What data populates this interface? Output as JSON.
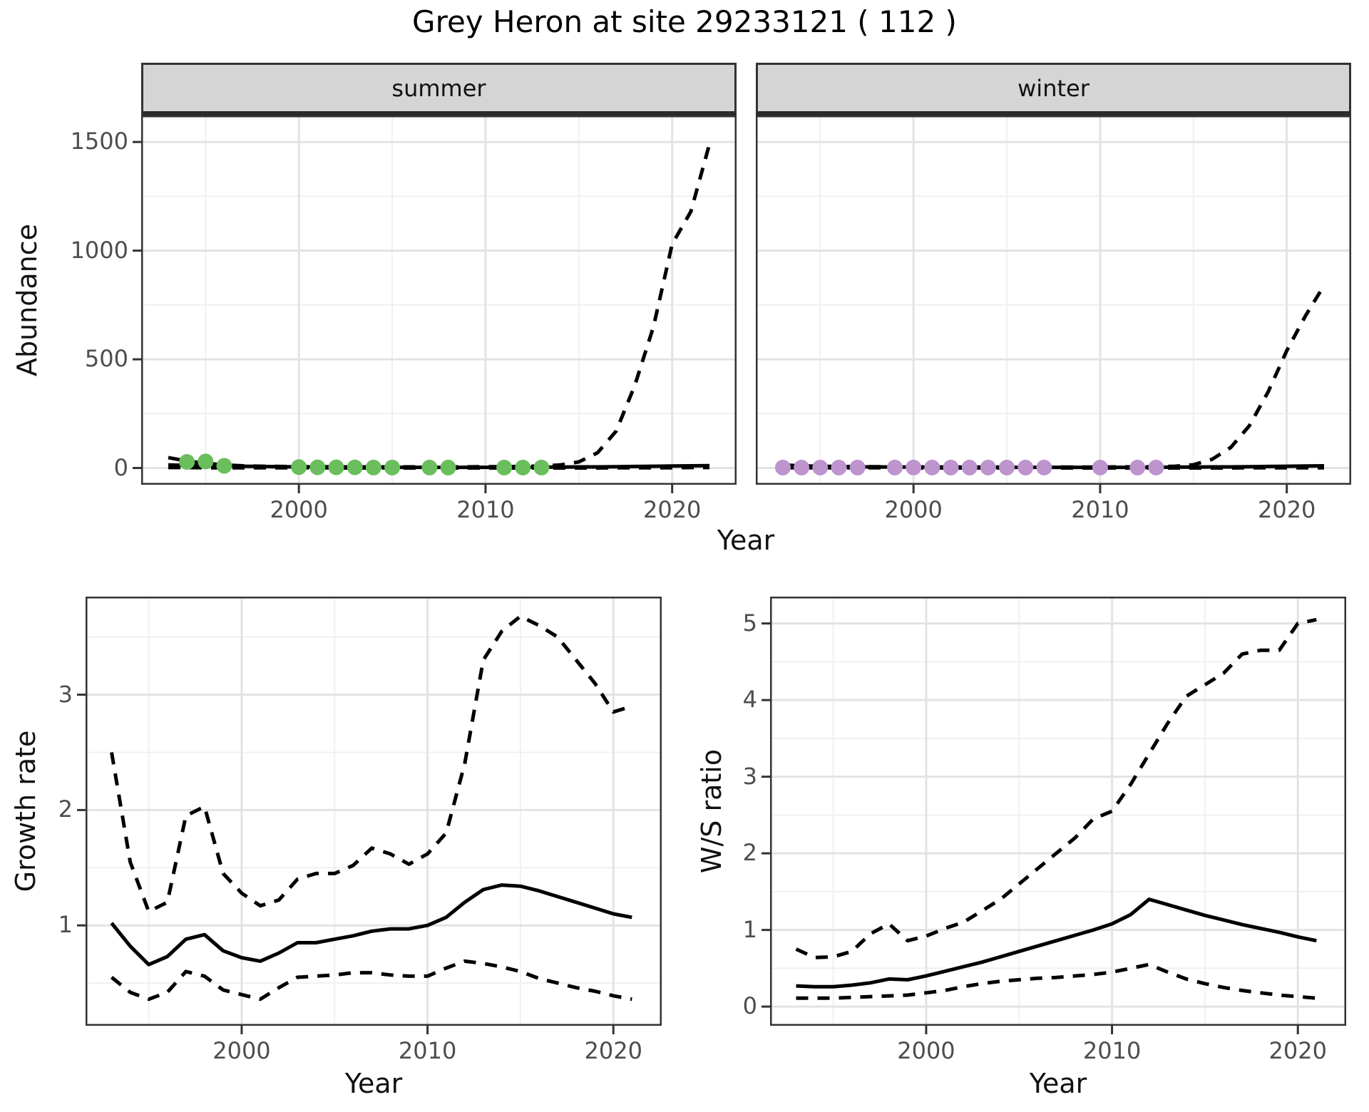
{
  "title": "Grey Heron at site 29233121 ( 112 )",
  "facets": {
    "summer": "summer",
    "winter": "winter"
  },
  "axes": {
    "abundance_label": "Abundance",
    "year_label_top": "Year",
    "growth_label": "Growth rate",
    "ws_label": "W/S ratio",
    "year_label_growth": "Year",
    "year_label_ws": "Year"
  },
  "colors": {
    "summer_point": "#6abe5c",
    "winter_point": "#bd94ce",
    "line": "#000000",
    "grid_major": "#e3e3e3",
    "grid_minor": "#f0f0f0",
    "panel_border": "#333333",
    "strip_bg": "#d5d5d5",
    "tick_text": "#4d4d4d"
  },
  "chart_data": [
    {
      "panel": "summer",
      "type": "line",
      "title": "summer abundance with 95% CI and observed counts",
      "xlabel": "Year",
      "ylabel": "Abundance",
      "xlim": [
        1991.55,
        2023.45
      ],
      "ylim": [
        -77,
        1622
      ],
      "x_ticks": [
        2000,
        2010,
        2020
      ],
      "x_tick_labels": [
        "2000",
        "2010",
        "2020"
      ],
      "x_minor": [
        1995,
        2005,
        2015
      ],
      "y_ticks": [
        0,
        500,
        1000,
        1500
      ],
      "y_tick_labels": [
        "0",
        "500",
        "1000",
        "1500"
      ],
      "y_minor": [
        250,
        750,
        1250
      ],
      "show_y_labels": true,
      "x": [
        1993,
        1994,
        1995,
        1996,
        1997,
        1998,
        1999,
        2000,
        2001,
        2002,
        2003,
        2004,
        2005,
        2006,
        2007,
        2008,
        2009,
        2010,
        2011,
        2012,
        2013,
        2014,
        2015,
        2016,
        2017,
        2018,
        2019,
        2020,
        2021,
        2022
      ],
      "series": [
        {
          "name": "upper_ci",
          "dash": true,
          "values": [
            48,
            32,
            22,
            14,
            10,
            8,
            7,
            6,
            6,
            5,
            5,
            5,
            5,
            5,
            5,
            5,
            5,
            6,
            6,
            7,
            9,
            14,
            28,
            70,
            170,
            380,
            650,
            1030,
            1180,
            1490
          ]
        },
        {
          "name": "lower_ci",
          "dash": true,
          "values": [
            2,
            2,
            1,
            1,
            1,
            1,
            1,
            1,
            1,
            0,
            0,
            0,
            0,
            0,
            0,
            0,
            0,
            0,
            0,
            0,
            0,
            0,
            0,
            0,
            1,
            1,
            1,
            1,
            2,
            2
          ]
        },
        {
          "name": "fit",
          "dash": false,
          "values": [
            14,
            12,
            10,
            9,
            8,
            7,
            6,
            5,
            5,
            4,
            4,
            4,
            3,
            3,
            3,
            3,
            3,
            3,
            3,
            3,
            4,
            4,
            5,
            5,
            6,
            7,
            8,
            9,
            10,
            11
          ]
        }
      ],
      "points": {
        "name": "observed_summer",
        "color": "#6abe5c",
        "x": [
          1994,
          1995,
          1996,
          2000,
          2001,
          2002,
          2003,
          2004,
          2005,
          2007,
          2008,
          2011,
          2012,
          2013
        ],
        "y": [
          28,
          30,
          10,
          4,
          3,
          3,
          3,
          2,
          2,
          2,
          2,
          2,
          2,
          2
        ]
      }
    },
    {
      "panel": "winter",
      "type": "line",
      "title": "winter abundance with 95% CI and observed counts",
      "xlabel": "Year",
      "ylabel": "Abundance",
      "xlim": [
        1991.55,
        2023.45
      ],
      "ylim": [
        -77,
        1622
      ],
      "x_ticks": [
        2000,
        2010,
        2020
      ],
      "x_tick_labels": [
        "2000",
        "2010",
        "2020"
      ],
      "x_minor": [
        1995,
        2005,
        2015
      ],
      "y_ticks": [
        0,
        500,
        1000,
        1500
      ],
      "y_tick_labels": [
        "0",
        "500",
        "1000",
        "1500"
      ],
      "y_minor": [
        250,
        750,
        1250
      ],
      "show_y_labels": false,
      "x": [
        1993,
        1994,
        1995,
        1996,
        1997,
        1998,
        1999,
        2000,
        2001,
        2002,
        2003,
        2004,
        2005,
        2006,
        2007,
        2008,
        2009,
        2010,
        2011,
        2012,
        2013,
        2014,
        2015,
        2016,
        2017,
        2018,
        2019,
        2020,
        2021,
        2022
      ],
      "series": [
        {
          "name": "upper_ci",
          "dash": true,
          "values": [
            14,
            10,
            8,
            7,
            6,
            6,
            5,
            5,
            5,
            4,
            4,
            4,
            4,
            4,
            4,
            4,
            4,
            4,
            5,
            5,
            6,
            8,
            15,
            40,
            95,
            195,
            350,
            540,
            700,
            840
          ]
        },
        {
          "name": "lower_ci",
          "dash": true,
          "values": [
            1,
            1,
            1,
            1,
            1,
            1,
            0,
            0,
            0,
            0,
            0,
            0,
            0,
            0,
            0,
            0,
            0,
            0,
            0,
            0,
            0,
            0,
            0,
            0,
            0,
            1,
            1,
            1,
            1,
            1
          ]
        },
        {
          "name": "fit",
          "dash": false,
          "values": [
            8,
            7,
            6,
            6,
            5,
            5,
            4,
            4,
            4,
            3,
            3,
            3,
            3,
            3,
            3,
            3,
            3,
            3,
            3,
            3,
            3,
            4,
            4,
            5,
            5,
            6,
            7,
            8,
            9,
            10
          ]
        }
      ],
      "points": {
        "name": "observed_winter",
        "color": "#bd94ce",
        "x": [
          1993,
          1994,
          1995,
          1996,
          1997,
          1999,
          2000,
          2001,
          2002,
          2003,
          2004,
          2005,
          2006,
          2007,
          2010,
          2012,
          2013
        ],
        "y": [
          2,
          2,
          2,
          2,
          2,
          2,
          2,
          2,
          2,
          2,
          2,
          2,
          2,
          2,
          2,
          2,
          2
        ]
      }
    },
    {
      "panel": "growth",
      "type": "line",
      "title": "Growth rate with 95% CI",
      "xlabel": "Year",
      "ylabel": "Growth rate",
      "xlim": [
        1991.6,
        2022.6
      ],
      "ylim": [
        0.13,
        3.85
      ],
      "x_ticks": [
        2000,
        2010,
        2020
      ],
      "x_tick_labels": [
        "2000",
        "2010",
        "2020"
      ],
      "x_minor": [
        1995,
        2005,
        2015
      ],
      "y_ticks": [
        1,
        2,
        3
      ],
      "y_tick_labels": [
        "1",
        "2",
        "3"
      ],
      "y_minor": [
        0.5,
        1.5,
        2.5,
        3.5
      ],
      "show_y_labels": true,
      "x": [
        1993,
        1994,
        1995,
        1996,
        1997,
        1998,
        1999,
        2000,
        2001,
        2002,
        2003,
        2004,
        2005,
        2006,
        2007,
        2008,
        2009,
        2010,
        2011,
        2012,
        2013,
        2014,
        2015,
        2016,
        2017,
        2018,
        2019,
        2020,
        2021
      ],
      "series": [
        {
          "name": "upper_ci",
          "dash": true,
          "values": [
            2.5,
            1.55,
            1.12,
            1.2,
            1.95,
            2.03,
            1.45,
            1.28,
            1.17,
            1.22,
            1.4,
            1.45,
            1.45,
            1.52,
            1.67,
            1.62,
            1.53,
            1.62,
            1.8,
            2.4,
            3.3,
            3.55,
            3.68,
            3.6,
            3.5,
            3.3,
            3.1,
            2.85,
            2.9
          ]
        },
        {
          "name": "lower_ci",
          "dash": true,
          "values": [
            0.55,
            0.42,
            0.36,
            0.42,
            0.6,
            0.56,
            0.44,
            0.4,
            0.36,
            0.46,
            0.55,
            0.56,
            0.57,
            0.59,
            0.59,
            0.57,
            0.56,
            0.56,
            0.63,
            0.69,
            0.67,
            0.64,
            0.6,
            0.54,
            0.5,
            0.46,
            0.43,
            0.39,
            0.36
          ]
        },
        {
          "name": "fit",
          "dash": false,
          "values": [
            1.02,
            0.82,
            0.66,
            0.73,
            0.88,
            0.92,
            0.78,
            0.72,
            0.69,
            0.76,
            0.85,
            0.85,
            0.88,
            0.91,
            0.95,
            0.97,
            0.97,
            1.0,
            1.07,
            1.2,
            1.31,
            1.35,
            1.34,
            1.3,
            1.25,
            1.2,
            1.15,
            1.1,
            1.07
          ]
        }
      ]
    },
    {
      "panel": "ws",
      "type": "line",
      "title": "Winter/Summer ratio with 95% CI",
      "xlabel": "Year",
      "ylabel": "W/S ratio",
      "xlim": [
        1991.6,
        2022.6
      ],
      "ylim": [
        -0.25,
        5.35
      ],
      "x_ticks": [
        2000,
        2010,
        2020
      ],
      "x_tick_labels": [
        "2000",
        "2010",
        "2020"
      ],
      "x_minor": [
        1995,
        2005,
        2015
      ],
      "y_ticks": [
        0,
        1,
        2,
        3,
        4,
        5
      ],
      "y_tick_labels": [
        "0",
        "1",
        "2",
        "3",
        "4",
        "5"
      ],
      "y_minor": [
        0.5,
        1.5,
        2.5,
        3.5,
        4.5
      ],
      "show_y_labels": true,
      "x": [
        1993,
        1994,
        1995,
        1996,
        1997,
        1998,
        1999,
        2000,
        2001,
        2002,
        2003,
        2004,
        2005,
        2006,
        2007,
        2008,
        2009,
        2010,
        2011,
        2012,
        2013,
        2014,
        2015,
        2016,
        2017,
        2018,
        2019,
        2020,
        2021
      ],
      "series": [
        {
          "name": "upper_ci",
          "dash": true,
          "values": [
            0.75,
            0.64,
            0.65,
            0.72,
            0.95,
            1.08,
            0.86,
            0.92,
            1.02,
            1.1,
            1.25,
            1.4,
            1.6,
            1.8,
            2.0,
            2.2,
            2.45,
            2.55,
            2.9,
            3.3,
            3.7,
            4.05,
            4.2,
            4.35,
            4.6,
            4.65,
            4.65,
            5.0,
            5.05
          ]
        },
        {
          "name": "lower_ci",
          "dash": true,
          "values": [
            0.11,
            0.11,
            0.11,
            0.12,
            0.13,
            0.14,
            0.15,
            0.18,
            0.21,
            0.26,
            0.3,
            0.33,
            0.35,
            0.37,
            0.38,
            0.4,
            0.42,
            0.45,
            0.5,
            0.55,
            0.45,
            0.36,
            0.3,
            0.25,
            0.21,
            0.18,
            0.15,
            0.13,
            0.11
          ]
        },
        {
          "name": "fit",
          "dash": false,
          "values": [
            0.27,
            0.26,
            0.26,
            0.28,
            0.31,
            0.36,
            0.35,
            0.4,
            0.46,
            0.52,
            0.58,
            0.65,
            0.72,
            0.79,
            0.86,
            0.93,
            1.0,
            1.08,
            1.2,
            1.4,
            1.33,
            1.26,
            1.19,
            1.13,
            1.07,
            1.02,
            0.97,
            0.91,
            0.86
          ]
        }
      ]
    }
  ]
}
